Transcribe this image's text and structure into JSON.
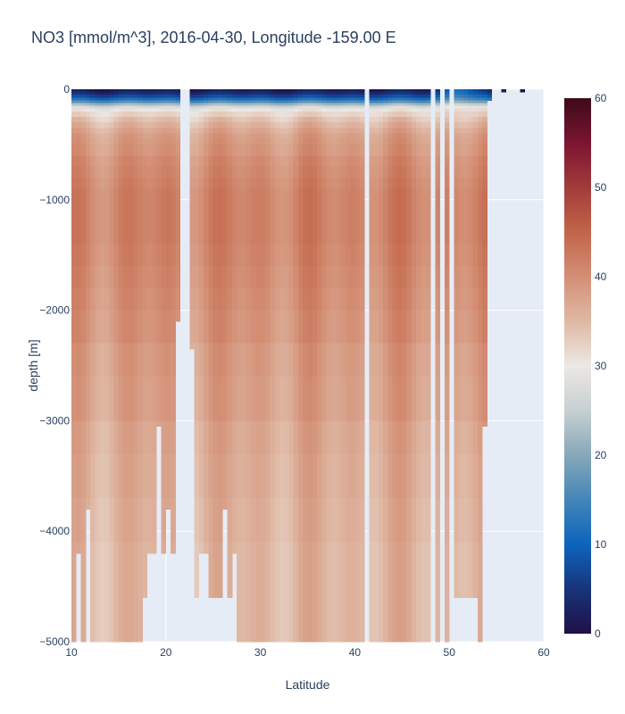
{
  "chart_data": {
    "type": "heatmap",
    "title": "NO3 [mmol/m^3], 2016-04-30, Longitude -159.00 E",
    "xlabel": "Latitude",
    "ylabel": "depth [m]",
    "xlim": [
      10,
      60
    ],
    "ylim": [
      -5000,
      0
    ],
    "x_ticks": [
      10,
      20,
      30,
      40,
      50,
      60
    ],
    "y_ticks": [
      0,
      -1000,
      -2000,
      -3000,
      -4000,
      -5000
    ],
    "x_tick_labels": [
      "10",
      "20",
      "30",
      "40",
      "50",
      "60"
    ],
    "y_tick_labels": [
      "0",
      "−1000",
      "−2000",
      "−3000",
      "−4000",
      "−5000"
    ],
    "colorbar": {
      "min": 0,
      "max": 60,
      "ticks": [
        0,
        10,
        20,
        30,
        40,
        50,
        60
      ],
      "tick_labels": [
        "0",
        "10",
        "20",
        "30",
        "40",
        "50",
        "60"
      ],
      "colorscale": [
        "#201046",
        "#18347b",
        "#0d64bc",
        "#4386b8",
        "#86a8b8",
        "#c7d0d2",
        "#ece8e4",
        "#dfb8a4",
        "#d38f75",
        "#c26549",
        "#a23b3b",
        "#7b1531",
        "#3d0a18"
      ]
    },
    "background_color": "#e5ecf6",
    "depths": [
      0,
      -25,
      -50,
      -75,
      -100,
      -125,
      -150,
      -175,
      -200,
      -250,
      -300,
      -350,
      -400,
      -450,
      -500,
      -600,
      -700,
      -800,
      -900,
      -1000,
      -1200,
      -1400,
      -1600,
      -1800,
      -2000,
      -2300,
      -2600,
      -3000,
      -3300,
      -3700,
      -4100,
      -4500,
      -5000
    ],
    "profile": [
      2,
      4,
      7,
      11,
      16,
      22,
      27,
      30,
      32,
      34,
      35.5,
      37,
      38,
      38.5,
      39,
      40,
      40.5,
      41,
      41.5,
      41.5,
      41.5,
      41,
      40.5,
      40,
      39.5,
      38.5,
      38,
      37,
      36.5,
      36,
      35.5,
      35.5,
      35.5
    ],
    "bottom_depth_by_latitude": [
      {
        "lat_range": [
          10,
          10.5
        ],
        "bottom": -5000
      },
      {
        "lat_range": [
          10.5,
          11
        ],
        "bottom": -4200
      },
      {
        "lat_range": [
          11,
          11.5
        ],
        "bottom": -5000
      },
      {
        "lat_range": [
          11.5,
          12
        ],
        "bottom": -3800
      },
      {
        "lat_range": [
          12,
          17.5
        ],
        "bottom": -5000
      },
      {
        "lat_range": [
          17.5,
          18
        ],
        "bottom": -4600
      },
      {
        "lat_range": [
          18,
          19
        ],
        "bottom": -4200
      },
      {
        "lat_range": [
          19,
          19.5
        ],
        "bottom": -3050
      },
      {
        "lat_range": [
          19.5,
          20
        ],
        "bottom": -4200
      },
      {
        "lat_range": [
          20,
          20.5
        ],
        "bottom": -3800
      },
      {
        "lat_range": [
          20.5,
          21
        ],
        "bottom": -4200
      },
      {
        "lat_range": [
          21,
          21.5
        ],
        "bottom": -2100
      },
      {
        "lat_range": [
          22.5,
          23
        ],
        "bottom": -2350
      },
      {
        "lat_range": [
          23,
          23.5
        ],
        "bottom": -4600
      },
      {
        "lat_range": [
          23.5,
          24.5
        ],
        "bottom": -4200
      },
      {
        "lat_range": [
          24.5,
          26
        ],
        "bottom": -4600
      },
      {
        "lat_range": [
          26,
          26.5
        ],
        "bottom": -3800
      },
      {
        "lat_range": [
          26.5,
          27
        ],
        "bottom": -4600
      },
      {
        "lat_range": [
          27,
          27.5
        ],
        "bottom": -4200
      },
      {
        "lat_range": [
          27.5,
          41
        ],
        "bottom": -5000
      },
      {
        "lat_range": [
          41.5,
          48
        ],
        "bottom": -5000
      },
      {
        "lat_range": [
          48.5,
          49
        ],
        "bottom": -5000
      },
      {
        "lat_range": [
          49.5,
          50
        ],
        "bottom": -5000
      },
      {
        "lat_range": [
          50.5,
          53
        ],
        "bottom": -4600
      },
      {
        "lat_range": [
          53,
          53.5
        ],
        "bottom": -5000
      },
      {
        "lat_range": [
          53.5,
          54
        ],
        "bottom": -3050
      },
      {
        "lat_range": [
          54,
          54.5
        ],
        "bottom": -100
      }
    ],
    "shallow_cap_cells": [
      {
        "lat_range": [
          55.5,
          56
        ],
        "bottom": -25
      },
      {
        "lat_range": [
          57.5,
          58
        ],
        "bottom": -25
      }
    ]
  }
}
